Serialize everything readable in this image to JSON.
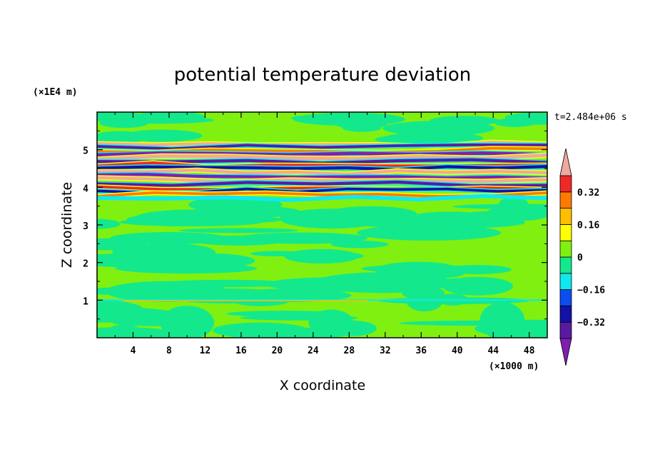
{
  "chart_data": {
    "type": "heatmap",
    "title": "potential temperature deviation",
    "xlabel": "X coordinate",
    "ylabel": "Z coordinate",
    "x_unit": "(×1000 m)",
    "y_unit": "(×1E4 m)",
    "time_label": "t=2.484e+06 s",
    "xlim": [
      0,
      50
    ],
    "ylim": [
      0,
      6
    ],
    "x_ticks": [
      4,
      8,
      12,
      16,
      20,
      24,
      28,
      32,
      36,
      40,
      44,
      48
    ],
    "x_tick_labels": [
      "4",
      "8",
      "12",
      "16",
      "20",
      "24",
      "28",
      "32",
      "36",
      "40",
      "44",
      "48"
    ],
    "y_ticks": [
      1,
      2,
      3,
      4,
      5
    ],
    "y_tick_labels": [
      "1",
      "2",
      "3",
      "4",
      "5"
    ],
    "colorbar": {
      "levels": [
        -0.48,
        -0.4,
        -0.32,
        -0.24,
        -0.16,
        -0.08,
        0,
        0.08,
        0.16,
        0.24,
        0.32,
        0.4
      ],
      "tick_values": [
        0.32,
        0.16,
        0,
        -0.16,
        -0.32
      ],
      "tick_labels": [
        "0.32",
        "0.16",
        "0",
        "−0.16",
        "−0.32"
      ],
      "colors": [
        "#7f1fb2",
        "#5a1aa0",
        "#1212a8",
        "#0c4cf0",
        "#10e8f0",
        "#14e88c",
        "#80f010",
        "#ffff00",
        "#ffbe00",
        "#ff7a00",
        "#f02828",
        "#f0a8a0"
      ]
    },
    "bands": [
      {
        "y": 5.15,
        "thick": 0.07,
        "value": 0.4
      },
      {
        "y": 5.08,
        "thick": 0.07,
        "value": -0.4
      },
      {
        "y": 4.98,
        "thick": 0.07,
        "value": 0.24
      },
      {
        "y": 4.9,
        "thick": 0.09,
        "value": -0.48
      },
      {
        "y": 4.8,
        "thick": 0.09,
        "value": 0.4
      },
      {
        "y": 4.7,
        "thick": 0.08,
        "value": -0.4
      },
      {
        "y": 4.6,
        "thick": 0.08,
        "value": 0.32
      },
      {
        "y": 4.5,
        "thick": 0.08,
        "value": -0.32
      },
      {
        "y": 4.4,
        "thick": 0.08,
        "value": 0.4
      },
      {
        "y": 4.3,
        "thick": 0.08,
        "value": -0.48
      },
      {
        "y": 4.2,
        "thick": 0.08,
        "value": 0.4
      },
      {
        "y": 4.1,
        "thick": 0.08,
        "value": -0.4
      },
      {
        "y": 4.0,
        "thick": 0.07,
        "value": 0.32
      },
      {
        "y": 3.9,
        "thick": 0.07,
        "value": -0.32
      },
      {
        "y": 3.8,
        "thick": 0.07,
        "value": 0.24
      },
      {
        "y": 3.72,
        "thick": 0.05,
        "value": -0.16
      }
    ]
  }
}
